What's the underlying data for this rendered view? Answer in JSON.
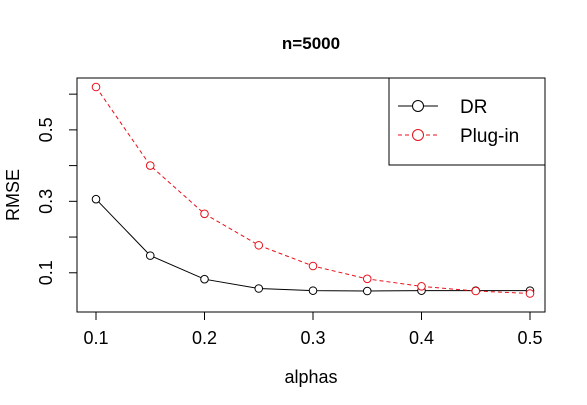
{
  "chart_data": {
    "type": "line",
    "title": "n=5000",
    "xlabel": "alphas",
    "ylabel": "RMSE",
    "x": [
      0.1,
      0.15,
      0.2,
      0.25,
      0.3,
      0.35,
      0.4,
      0.45,
      0.5
    ],
    "xlim": [
      0.1,
      0.5
    ],
    "ylim": [
      0.035,
      0.62
    ],
    "x_ticks": [
      "0.1",
      "0.2",
      "0.3",
      "0.4",
      "0.5"
    ],
    "y_ticks": [
      "0.1",
      "0.3",
      "0.5"
    ],
    "y_ticks_minor": [
      0.2,
      0.4,
      0.6
    ],
    "legend_position": "top-right",
    "series": [
      {
        "name": "DR",
        "color": "#000000",
        "line_style": "solid",
        "marker": "open-circle",
        "values": [
          0.306,
          0.148,
          0.082,
          0.056,
          0.05,
          0.049,
          0.05,
          0.05,
          0.05
        ]
      },
      {
        "name": "Plug-in",
        "color": "#e8101a",
        "line_style": "dashed",
        "marker": "open-circle",
        "values": [
          0.62,
          0.4,
          0.265,
          0.177,
          0.119,
          0.083,
          0.062,
          0.049,
          0.042
        ]
      }
    ]
  }
}
